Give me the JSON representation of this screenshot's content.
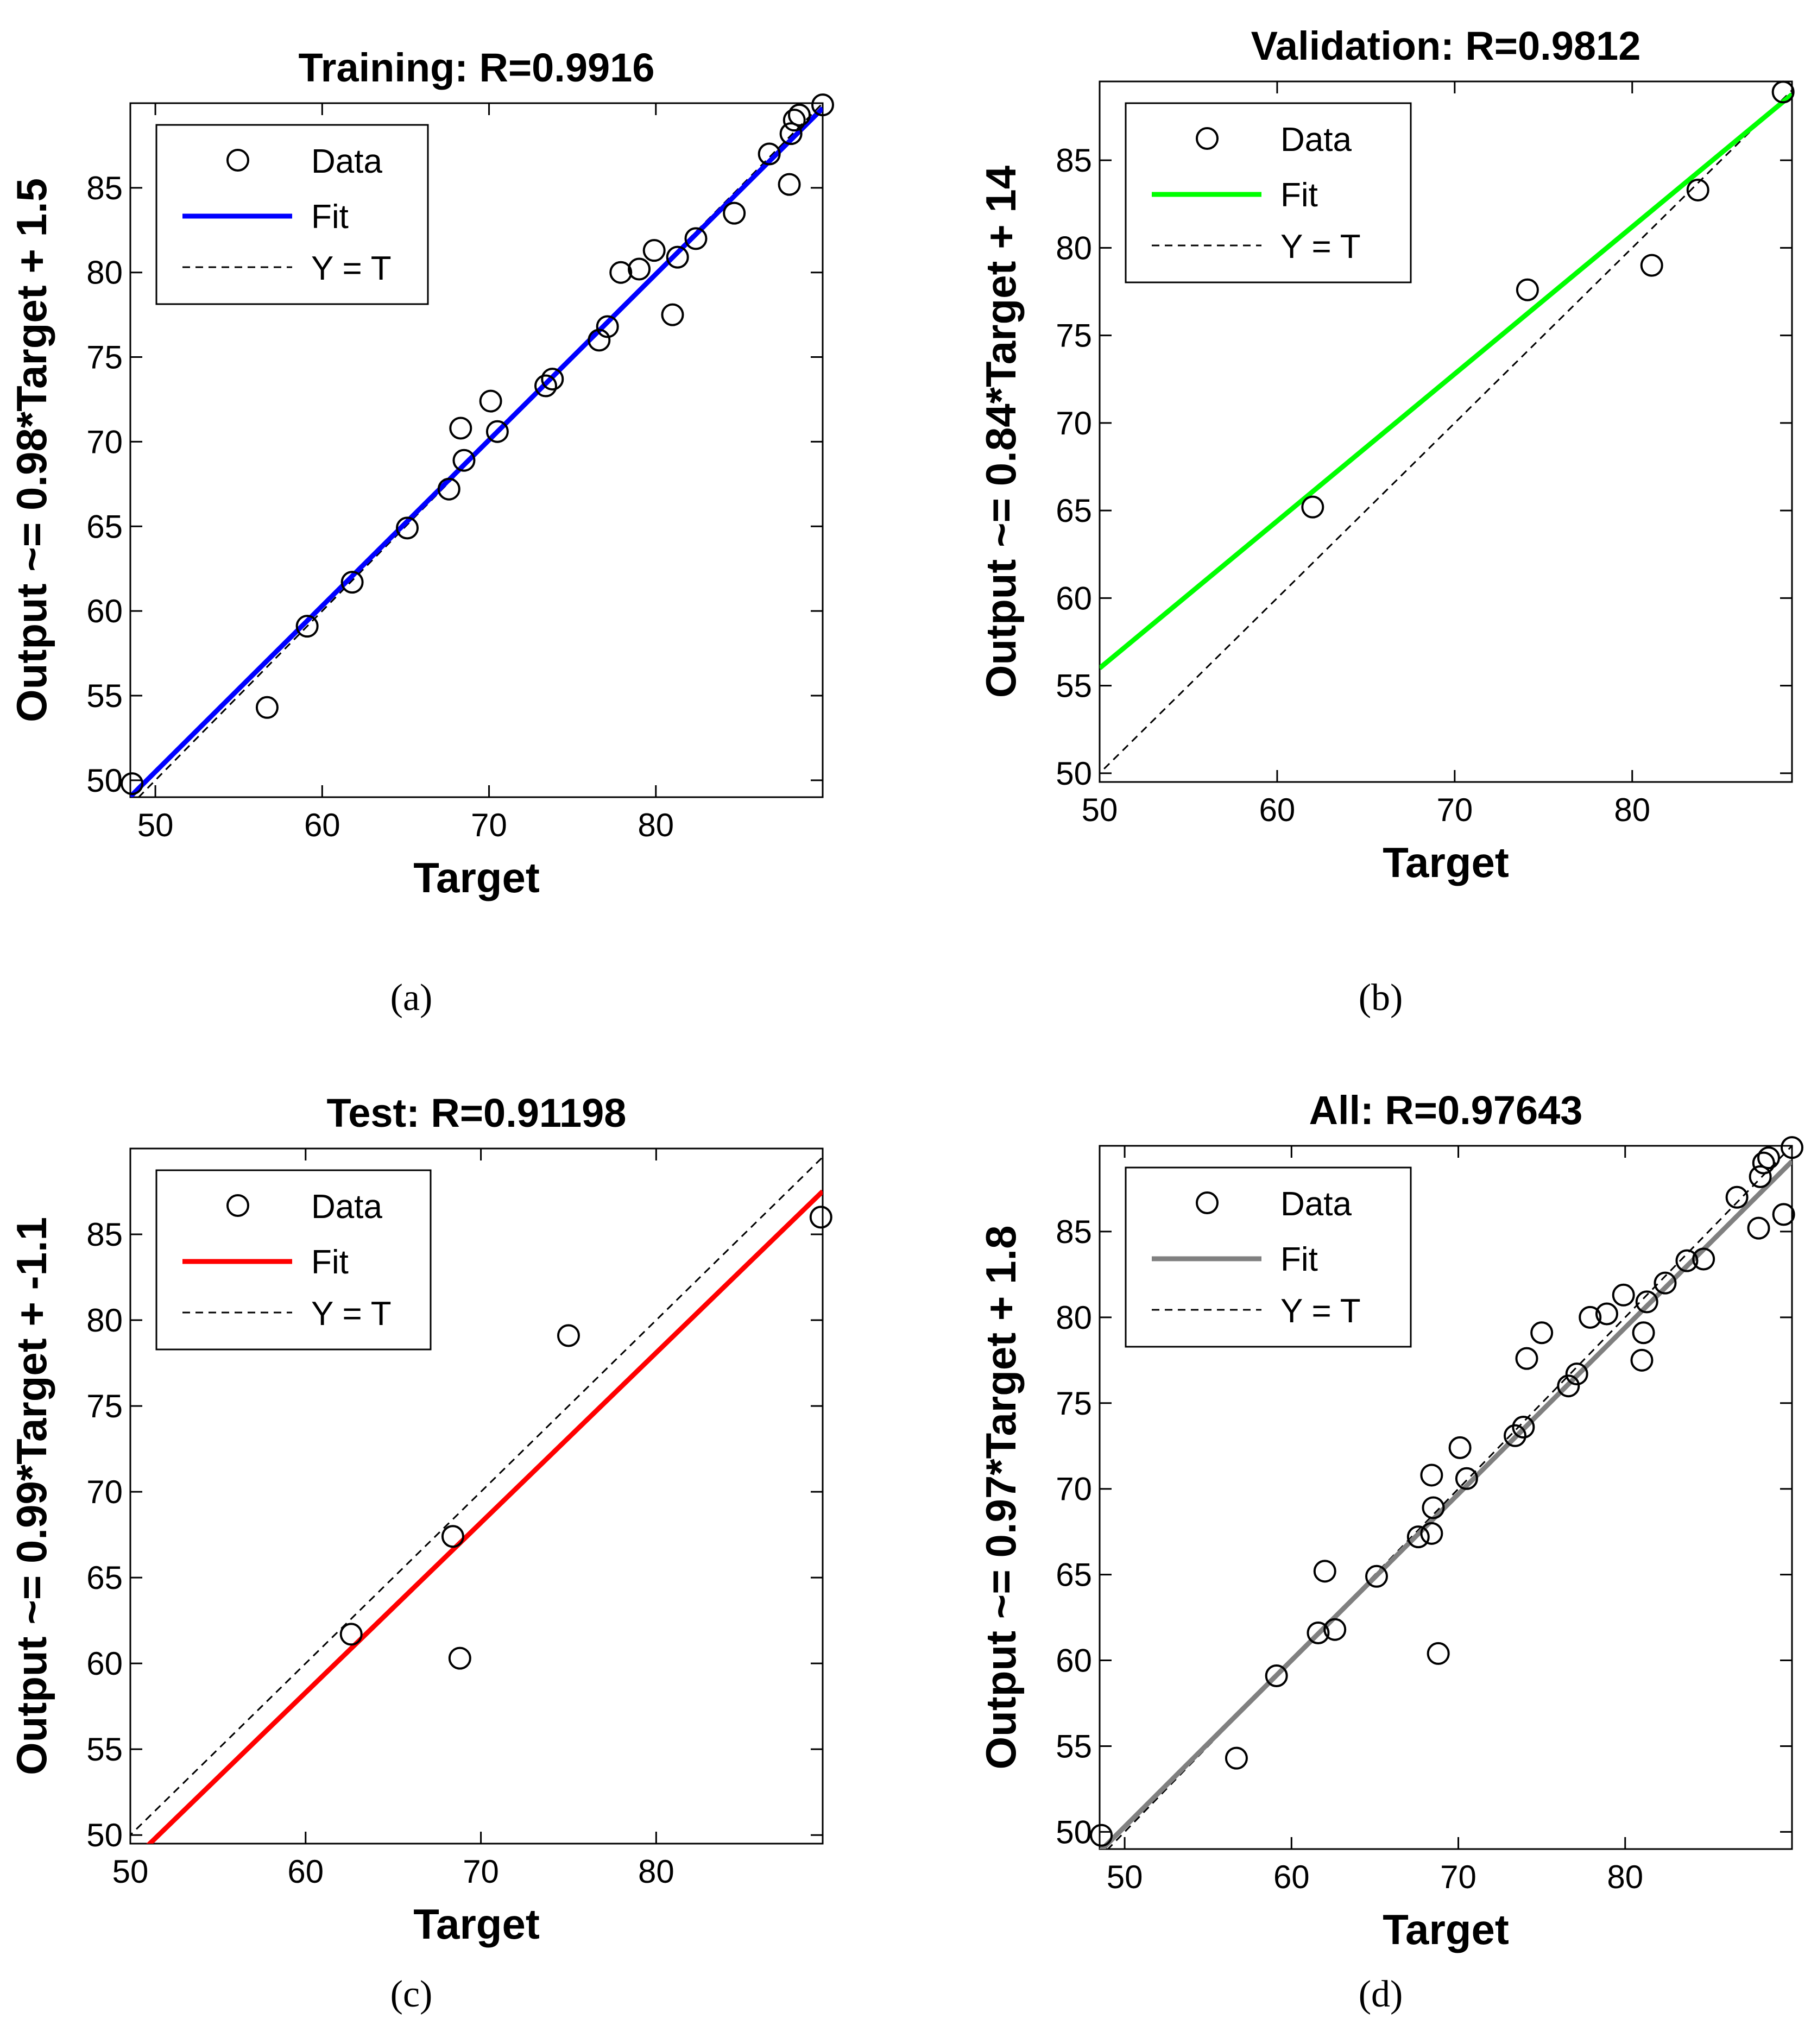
{
  "legend_labels": {
    "data": "Data",
    "fit": "Fit",
    "yt": "Y = T"
  },
  "chart_data": [
    {
      "type": "scatter",
      "caption": "(a)",
      "title": "Training: R=0.9916",
      "xlabel": "Target",
      "ylabel": "Output ~= 0.98*Target + 1.5",
      "xlim": [
        48.5,
        90
      ],
      "ylim": [
        49,
        90
      ],
      "xticks": [
        50,
        60,
        70,
        80
      ],
      "yticks": [
        50,
        55,
        60,
        65,
        70,
        75,
        80,
        85
      ],
      "fit": {
        "slope": 0.98,
        "intercept": 1.5,
        "color": "#0000ff"
      },
      "points": [
        [
          48.6,
          49.8
        ],
        [
          56.7,
          54.3
        ],
        [
          59.1,
          59.1
        ],
        [
          61.8,
          61.7
        ],
        [
          65.1,
          64.9
        ],
        [
          67.6,
          67.2
        ],
        [
          68.3,
          70.8
        ],
        [
          68.5,
          68.9
        ],
        [
          70.1,
          72.4
        ],
        [
          70.5,
          70.6
        ],
        [
          73.4,
          73.3
        ],
        [
          73.8,
          73.7
        ],
        [
          76.6,
          76.0
        ],
        [
          77.1,
          76.8
        ],
        [
          77.9,
          80.0
        ],
        [
          79.0,
          80.2
        ],
        [
          79.9,
          81.3
        ],
        [
          81.0,
          77.5
        ],
        [
          81.3,
          80.9
        ],
        [
          82.4,
          82.0
        ],
        [
          84.7,
          83.5
        ],
        [
          86.8,
          87.0
        ],
        [
          88.0,
          85.2
        ],
        [
          88.1,
          88.2
        ],
        [
          88.3,
          89.0
        ],
        [
          88.6,
          89.3
        ],
        [
          90.0,
          89.9
        ]
      ]
    },
    {
      "type": "scatter",
      "caption": "(b)",
      "title": "Validation: R=0.9812",
      "xlabel": "Target",
      "ylabel": "Output ~= 0.84*Target + 14",
      "xlim": [
        50,
        89
      ],
      "ylim": [
        49.5,
        89.5
      ],
      "xticks": [
        50,
        60,
        70,
        80
      ],
      "yticks": [
        50,
        55,
        60,
        65,
        70,
        75,
        80,
        85
      ],
      "fit": {
        "slope": 0.84,
        "intercept": 14,
        "color": "#00ff00"
      },
      "points": [
        [
          62.0,
          65.2
        ],
        [
          74.1,
          77.6
        ],
        [
          81.1,
          79.0
        ],
        [
          83.7,
          83.3
        ],
        [
          88.5,
          88.9
        ]
      ]
    },
    {
      "type": "scatter",
      "caption": "(c)",
      "title": "Test: R=0.91198",
      "xlabel": "Target",
      "ylabel": "Output ~= 0.99*Target + -1.1",
      "xlim": [
        50,
        89.5
      ],
      "ylim": [
        49.5,
        90
      ],
      "xticks": [
        50,
        60,
        70,
        80
      ],
      "yticks": [
        50,
        55,
        60,
        65,
        70,
        75,
        80,
        85
      ],
      "fit": {
        "slope": 0.99,
        "intercept": -1.1,
        "color": "#ff0000"
      },
      "points": [
        [
          62.6,
          61.7
        ],
        [
          68.4,
          67.4
        ],
        [
          68.8,
          60.3
        ],
        [
          75.0,
          79.1
        ],
        [
          89.4,
          86.0
        ]
      ]
    },
    {
      "type": "scatter",
      "caption": "(d)",
      "title": "All: R=0.97643",
      "xlabel": "Target",
      "ylabel": "Output ~= 0.97*Target + 1.8",
      "xlim": [
        48.5,
        90
      ],
      "ylim": [
        49,
        90
      ],
      "xticks": [
        50,
        60,
        70,
        80
      ],
      "yticks": [
        50,
        55,
        60,
        65,
        70,
        75,
        80,
        85
      ],
      "fit": {
        "slope": 0.97,
        "intercept": 1.8,
        "color": "#808080"
      },
      "points": [
        [
          48.6,
          49.8
        ],
        [
          56.7,
          54.3
        ],
        [
          59.1,
          59.1
        ],
        [
          61.6,
          61.6
        ],
        [
          62.0,
          65.2
        ],
        [
          62.6,
          61.8
        ],
        [
          65.1,
          64.9
        ],
        [
          67.6,
          67.2
        ],
        [
          68.4,
          67.4
        ],
        [
          68.4,
          70.8
        ],
        [
          68.5,
          68.9
        ],
        [
          68.8,
          60.4
        ],
        [
          70.1,
          72.4
        ],
        [
          70.5,
          70.6
        ],
        [
          73.4,
          73.1
        ],
        [
          73.9,
          73.6
        ],
        [
          74.1,
          77.6
        ],
        [
          75.0,
          79.1
        ],
        [
          76.6,
          76.0
        ],
        [
          77.1,
          76.7
        ],
        [
          77.9,
          80.0
        ],
        [
          78.9,
          80.2
        ],
        [
          79.9,
          81.3
        ],
        [
          81.0,
          77.5
        ],
        [
          81.1,
          79.1
        ],
        [
          81.3,
          80.9
        ],
        [
          82.4,
          82.0
        ],
        [
          83.7,
          83.3
        ],
        [
          84.7,
          83.4
        ],
        [
          86.7,
          87.0
        ],
        [
          88.0,
          85.2
        ],
        [
          88.1,
          88.2
        ],
        [
          88.3,
          89.0
        ],
        [
          88.6,
          89.3
        ],
        [
          89.5,
          86.0
        ],
        [
          90.0,
          89.9
        ]
      ]
    }
  ]
}
